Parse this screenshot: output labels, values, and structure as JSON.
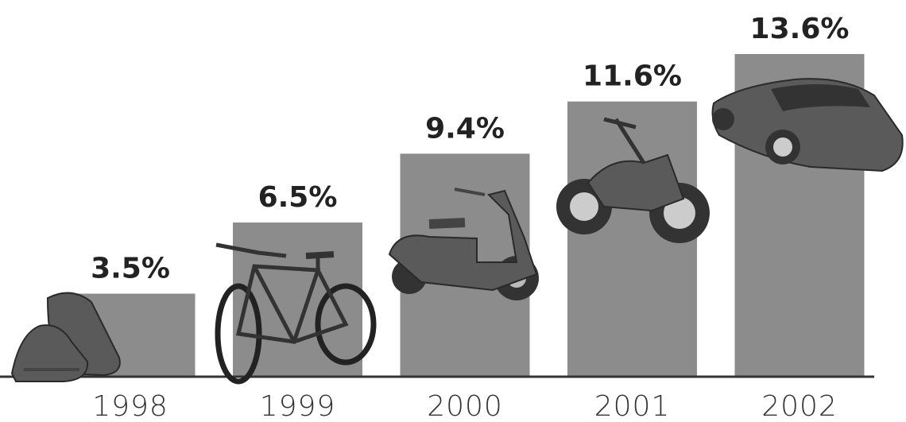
{
  "chart_data": {
    "type": "bar",
    "categories": [
      "1998",
      "1999",
      "2000",
      "2001",
      "2002"
    ],
    "values": [
      3.5,
      6.5,
      9.4,
      11.6,
      13.6
    ],
    "value_labels": [
      "3.5%",
      "6.5%",
      "9.4%",
      "11.6%",
      "13.6%"
    ],
    "color": "#8c8c8c"
  }
}
